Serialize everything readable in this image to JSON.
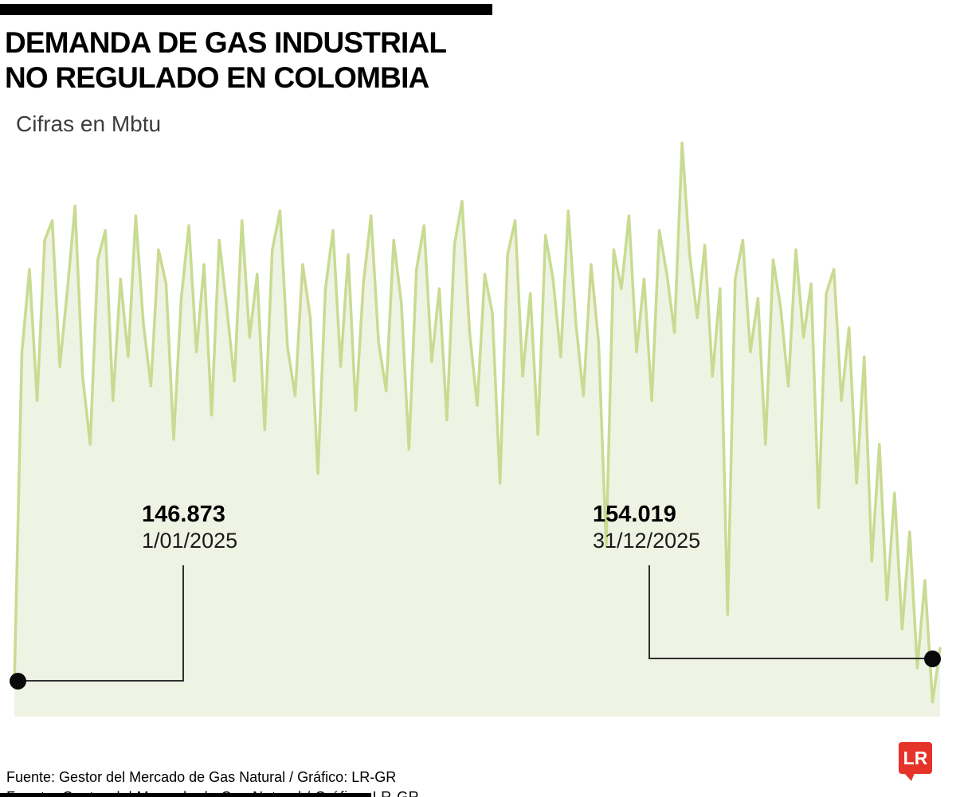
{
  "header": {
    "title": "DEMANDA DE GAS INDUSTRIAL\nNO REGULADO EN COLOMBIA",
    "subtitle": "Cifras en Mbtu"
  },
  "annotations": {
    "start": {
      "value": "146.873",
      "date": "1/01/2025"
    },
    "end": {
      "value": "154.019",
      "date": "31/12/2025"
    }
  },
  "footer": {
    "source": "Fuente: Gestor del Mercado de Gas Natural / Gráfico: LR-GR",
    "logo_text": "LR"
  },
  "colors": {
    "line": "#c9db92",
    "fill": "#eff3e3",
    "dot": "#0a0a0a",
    "logo_red": "#e6332a",
    "bar_black": "#000000"
  },
  "chart_data": {
    "type": "area",
    "title": "Demanda de gas industrial no regulado en Colombia",
    "unit": "Mbtu",
    "x_start": "1/01/2025",
    "x_end": "31/12/2025",
    "first_value": 146873,
    "last_value": 154019,
    "ylim": [
      140000,
      262000
    ],
    "grid": false,
    "legend": "none",
    "axes_visible": false,
    "values": [
      146873,
      215000,
      232000,
      205000,
      238000,
      242000,
      212000,
      228000,
      245000,
      210000,
      196000,
      234000,
      240000,
      205000,
      230000,
      214000,
      243000,
      221000,
      208000,
      236000,
      229000,
      197000,
      226000,
      241000,
      215000,
      233000,
      202000,
      238000,
      224000,
      209000,
      242000,
      218000,
      231000,
      199000,
      236000,
      244000,
      216000,
      206000,
      233000,
      222000,
      190000,
      228000,
      240000,
      212000,
      235000,
      203000,
      229000,
      243000,
      217000,
      207000,
      238000,
      225000,
      195000,
      232000,
      241000,
      213000,
      228000,
      201000,
      237000,
      246000,
      219000,
      204000,
      231000,
      223000,
      188000,
      235000,
      242000,
      210000,
      227000,
      198000,
      239000,
      230000,
      214000,
      244000,
      221000,
      206000,
      233000,
      217000,
      175000,
      236000,
      228000,
      243000,
      215000,
      230000,
      205000,
      240000,
      231000,
      219000,
      258000,
      235000,
      222000,
      237000,
      210000,
      228000,
      161000,
      230000,
      238000,
      215000,
      226000,
      196000,
      234000,
      224000,
      208000,
      236000,
      218000,
      229000,
      183000,
      227000,
      232000,
      205000,
      220000,
      188000,
      214000,
      172000,
      196000,
      164000,
      186000,
      158000,
      178000,
      150000,
      168000,
      143000,
      154019
    ]
  }
}
